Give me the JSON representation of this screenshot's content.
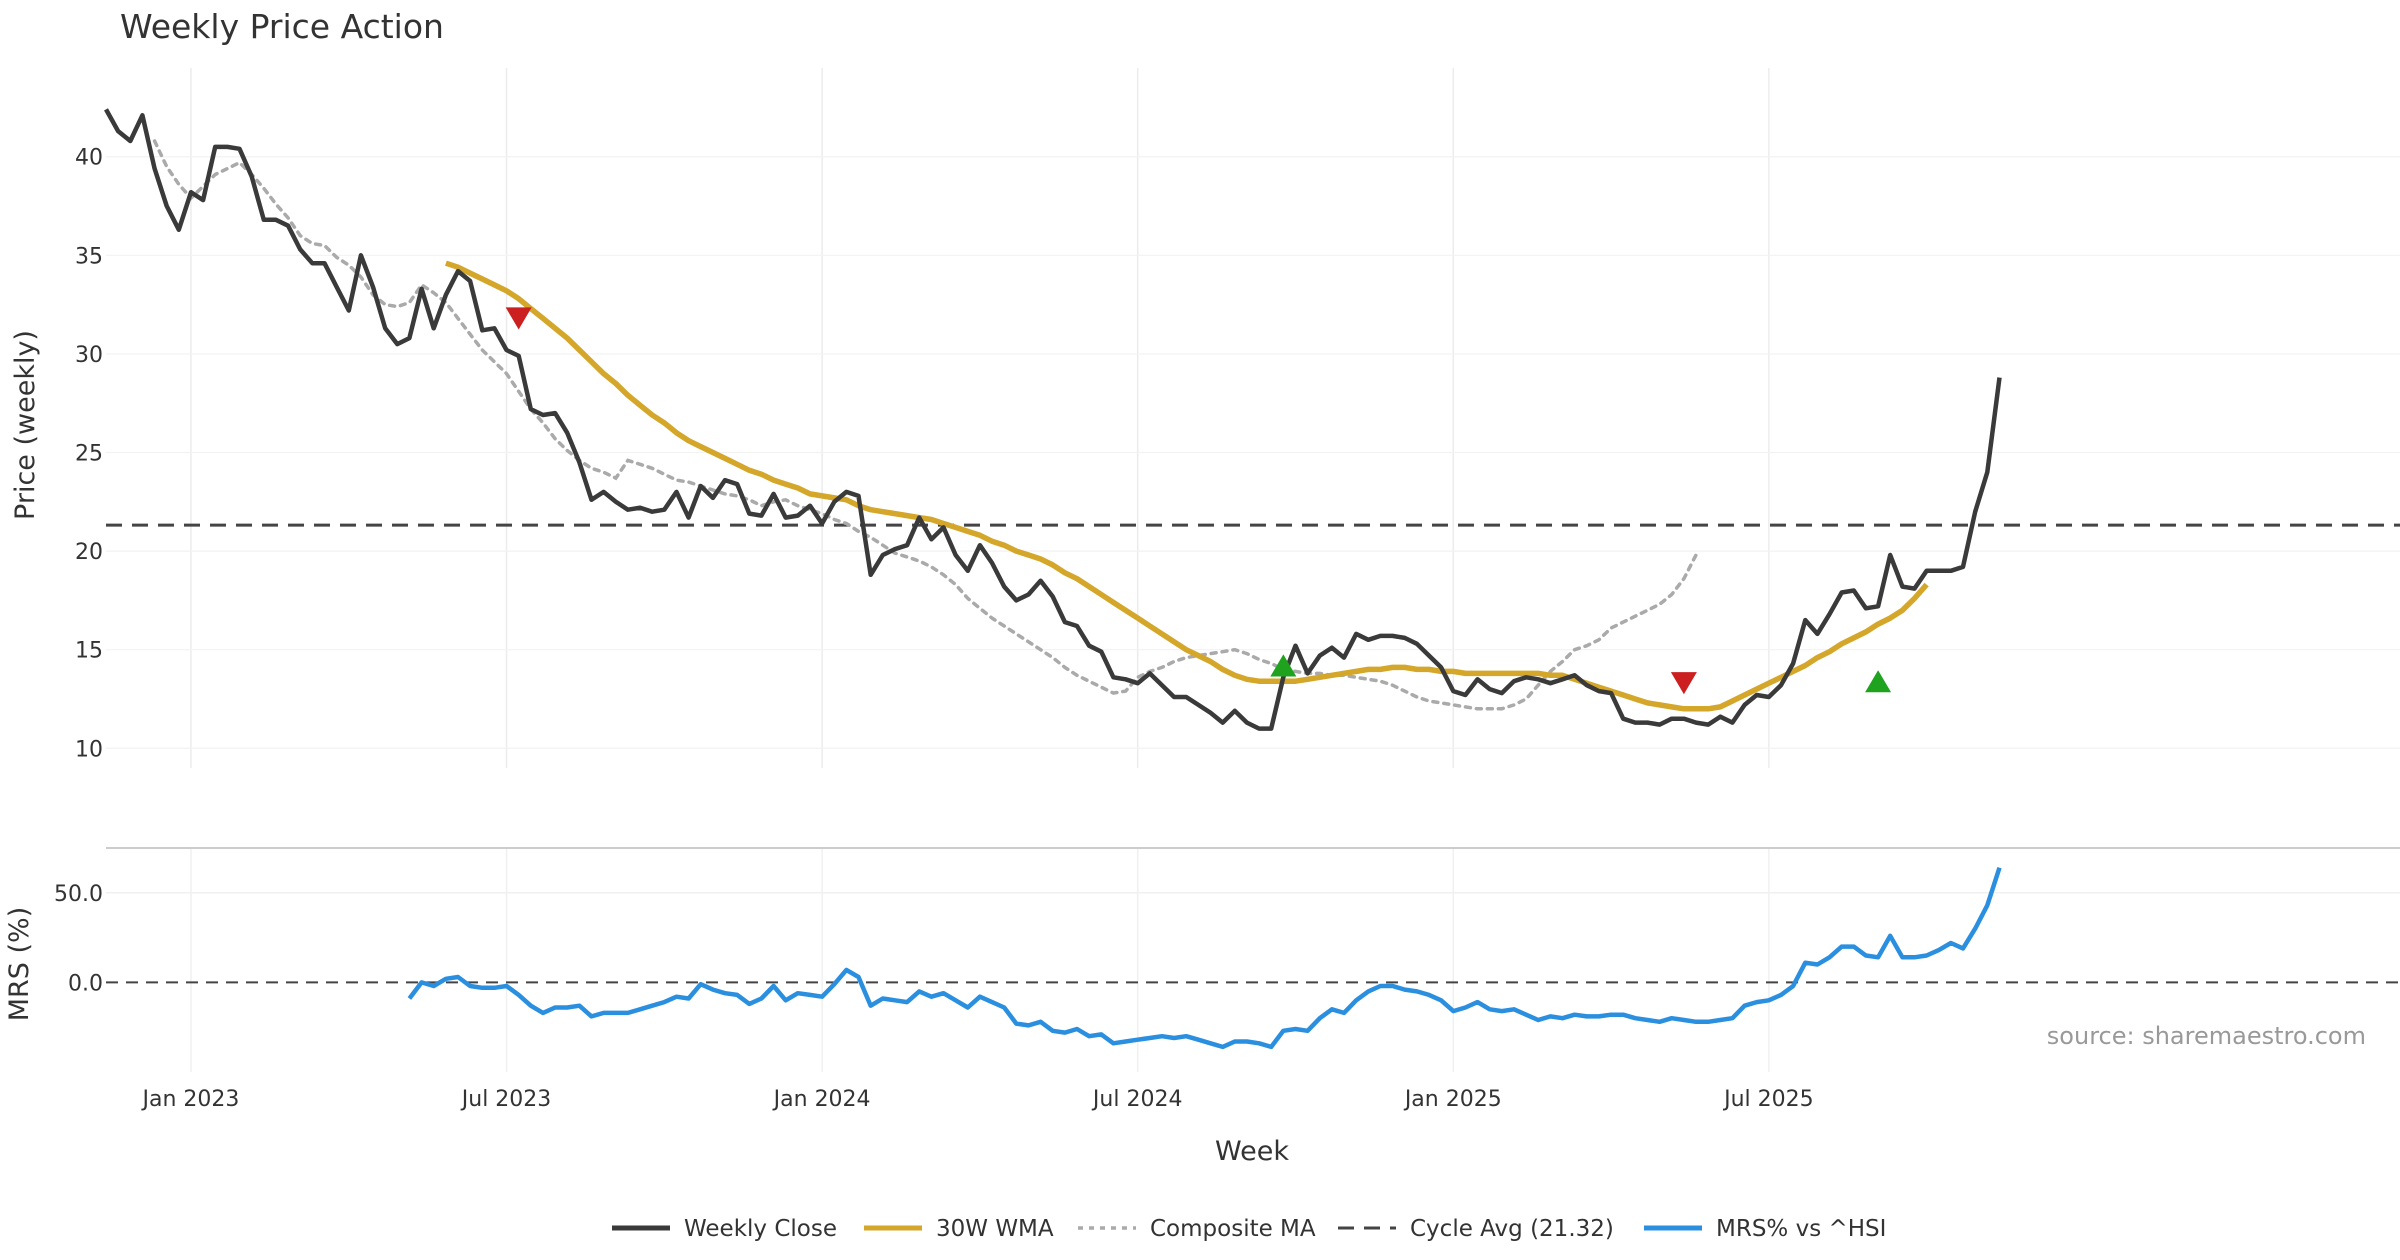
{
  "chart_data": {
    "type": "line",
    "title": "Weekly Price Action",
    "source": "source: sharemaestro.com",
    "xlabel": "Week",
    "xticks": [
      {
        "label": "Jan 2023",
        "week": 5
      },
      {
        "label": "Jul 2023",
        "week": 31
      },
      {
        "label": "Jan 2024",
        "week": 57
      },
      {
        "label": "Jul 2024",
        "week": 83
      },
      {
        "label": "Jan 2025",
        "week": 109
      },
      {
        "label": "Jul 2025",
        "week": 135
      }
    ],
    "x_range": [
      -2,
      187
    ],
    "price_panel": {
      "ylabel": "Price (weekly)",
      "ylim": [
        9,
        44.5
      ],
      "yticks": [
        10,
        15,
        20,
        25,
        30,
        35,
        40
      ],
      "cycle_avg": 21.32,
      "weekly_close": {
        "name": "Weekly Close",
        "color": "#3a3a3a",
        "start_week": -2,
        "values": [
          42.4,
          41.3,
          40.8,
          42.1,
          39.4,
          37.5,
          36.3,
          38.2,
          37.8,
          40.5,
          40.5,
          40.4,
          39.0,
          36.8,
          36.8,
          36.5,
          35.3,
          34.6,
          34.6,
          33.4,
          32.2,
          35.0,
          33.4,
          31.3,
          30.5,
          30.8,
          33.3,
          31.3,
          33.0,
          34.2,
          33.7,
          31.2,
          31.3,
          30.2,
          29.9,
          27.2,
          26.9,
          27.0,
          26.0,
          24.5,
          22.6,
          23.0,
          22.5,
          22.1,
          22.2,
          22.0,
          22.1,
          23.0,
          21.7,
          23.3,
          22.7,
          23.6,
          23.4,
          21.9,
          21.8,
          22.9,
          21.7,
          21.8,
          22.3,
          21.4,
          22.5,
          23.0,
          22.8,
          18.8,
          19.8,
          20.1,
          20.3,
          21.7,
          20.6,
          21.2,
          19.8,
          19.0,
          20.3,
          19.4,
          18.2,
          17.5,
          17.8,
          18.5,
          17.7,
          16.4,
          16.2,
          15.2,
          14.9,
          13.6,
          13.5,
          13.3,
          13.8,
          13.2,
          12.6,
          12.6,
          12.2,
          11.8,
          11.3,
          11.9,
          11.3,
          11.0,
          11.0,
          13.6,
          15.2,
          13.8,
          14.7,
          15.1,
          14.6,
          15.8,
          15.5,
          15.7,
          15.7,
          15.6,
          15.3,
          14.7,
          14.1,
          12.9,
          12.7,
          13.5,
          13.0,
          12.8,
          13.4,
          13.6,
          13.5,
          13.3,
          13.5,
          13.7,
          13.2,
          12.9,
          12.8,
          11.5,
          11.3,
          11.3,
          11.2,
          11.5,
          11.5,
          11.3,
          11.2,
          11.6,
          11.3,
          12.2,
          12.7,
          12.6,
          13.2,
          14.3,
          16.5,
          15.8,
          16.8,
          17.9,
          18.0,
          17.1,
          17.2,
          19.8,
          18.2,
          18.1,
          19.0,
          19.0,
          19.0,
          19.2,
          22.0,
          24.0,
          28.8
        ]
      },
      "wma_30w": {
        "name": "30W WMA",
        "color": "#d4a62a",
        "start_week": 26,
        "values": [
          34.6,
          34.4,
          34.1,
          33.8,
          33.5,
          33.2,
          32.8,
          32.3,
          31.8,
          31.3,
          30.8,
          30.2,
          29.6,
          29.0,
          28.5,
          27.9,
          27.4,
          26.9,
          26.5,
          26.0,
          25.6,
          25.3,
          25.0,
          24.7,
          24.4,
          24.1,
          23.9,
          23.6,
          23.4,
          23.2,
          22.9,
          22.8,
          22.7,
          22.6,
          22.3,
          22.1,
          22.0,
          21.9,
          21.8,
          21.7,
          21.6,
          21.4,
          21.2,
          21.0,
          20.8,
          20.5,
          20.3,
          20.0,
          19.8,
          19.6,
          19.3,
          18.9,
          18.6,
          18.2,
          17.8,
          17.4,
          17.0,
          16.6,
          16.2,
          15.8,
          15.4,
          15.0,
          14.7,
          14.4,
          14.0,
          13.7,
          13.5,
          13.4,
          13.4,
          13.4,
          13.4,
          13.5,
          13.6,
          13.7,
          13.8,
          13.9,
          14.0,
          14.0,
          14.1,
          14.1,
          14.0,
          14.0,
          13.9,
          13.9,
          13.8,
          13.8,
          13.8,
          13.8,
          13.8,
          13.8,
          13.8,
          13.7,
          13.7,
          13.5,
          13.3,
          13.1,
          12.9,
          12.7,
          12.5,
          12.3,
          12.2,
          12.1,
          12.0,
          12.0,
          12.0,
          12.1,
          12.4,
          12.7,
          13.0,
          13.3,
          13.6,
          13.9,
          14.2,
          14.6,
          14.9,
          15.3,
          15.6,
          15.9,
          16.3,
          16.6,
          17.0,
          17.6,
          18.3
        ]
      },
      "composite_ma": {
        "name": "Composite MA",
        "color": "#aaaaaa",
        "start_week": 2,
        "values": [
          40.8,
          39.5,
          38.6,
          37.9,
          38.5,
          39.1,
          39.4,
          39.7,
          39.1,
          38.4,
          37.6,
          36.9,
          36.0,
          35.6,
          35.5,
          34.9,
          34.5,
          33.9,
          33.0,
          32.5,
          32.4,
          32.6,
          33.5,
          33.1,
          32.6,
          31.8,
          31.0,
          30.2,
          29.6,
          29.0,
          28.1,
          27.2,
          26.5,
          25.7,
          25.1,
          24.6,
          24.2,
          24.0,
          23.7,
          24.6,
          24.4,
          24.2,
          23.9,
          23.6,
          23.5,
          23.3,
          23.1,
          22.9,
          22.8,
          22.6,
          22.3,
          22.5,
          22.6,
          22.3,
          22.1,
          21.9,
          21.6,
          21.4,
          21.0,
          20.7,
          20.3,
          19.9,
          19.7,
          19.5,
          19.2,
          18.8,
          18.3,
          17.6,
          17.1,
          16.6,
          16.2,
          15.8,
          15.4,
          15.0,
          14.6,
          14.1,
          13.7,
          13.4,
          13.1,
          12.8,
          12.9,
          13.6,
          13.9,
          14.1,
          14.4,
          14.6,
          14.7,
          14.8,
          14.9,
          15.0,
          14.8,
          14.5,
          14.3,
          14.0,
          13.9,
          13.8,
          13.8,
          13.7,
          13.7,
          13.6,
          13.5,
          13.4,
          13.2,
          12.9,
          12.6,
          12.4,
          12.3,
          12.2,
          12.1,
          12.0,
          12.0,
          12.0,
          12.2,
          12.5,
          13.2,
          13.9,
          14.4,
          15.0,
          15.2,
          15.5,
          16.1,
          16.4,
          16.7,
          17.0,
          17.3,
          17.8,
          18.6,
          19.8
        ]
      },
      "sell_signals": [
        {
          "week": 32,
          "price": 31.8
        },
        {
          "week": 128,
          "price": 13.3
        }
      ],
      "buy_signals": [
        {
          "week": 95,
          "price": 14.2
        },
        {
          "week": 144,
          "price": 13.4
        }
      ]
    },
    "mrs_panel": {
      "ylabel": "MRS (%)",
      "ylim": [
        -50,
        75
      ],
      "yticks": [
        {
          "value": 0,
          "label": "0.0"
        },
        {
          "value": 50,
          "label": "50.0"
        }
      ],
      "mrs": {
        "name": "MRS% vs ^HSI",
        "color": "#2b8fe0",
        "start_week": 23,
        "values": [
          -9,
          0,
          -2,
          2,
          3,
          -2,
          -3,
          -3,
          -2,
          -7,
          -13,
          -17,
          -14,
          -14,
          -13,
          -19,
          -17,
          -17,
          -17,
          -15,
          -13,
          -11,
          -8,
          -9,
          -1,
          -4,
          -6,
          -7,
          -12,
          -9,
          -2,
          -10,
          -6,
          -7,
          -8,
          -1,
          7,
          3,
          -13,
          -9,
          -10,
          -11,
          -5,
          -8,
          -6,
          -10,
          -14,
          -8,
          -11,
          -14,
          -23,
          -24,
          -22,
          -27,
          -28,
          -26,
          -30,
          -29,
          -34,
          -33,
          -32,
          -31,
          -30,
          -31,
          -30,
          -32,
          -34,
          -36,
          -33,
          -33,
          -34,
          -36,
          -27,
          -26,
          -27,
          -20,
          -15,
          -17,
          -10,
          -5,
          -2,
          -2,
          -4,
          -5,
          -7,
          -10,
          -16,
          -14,
          -11,
          -15,
          -16,
          -15,
          -18,
          -21,
          -19,
          -20,
          -18,
          -19,
          -19,
          -18,
          -18,
          -20,
          -21,
          -22,
          -20,
          -21,
          -22,
          -22,
          -21,
          -20,
          -13,
          -11,
          -10,
          -7,
          -2,
          11,
          10,
          14,
          20,
          20,
          15,
          14,
          26,
          14,
          14,
          15,
          18,
          22,
          19,
          30,
          43,
          64
        ]
      }
    },
    "legend": [
      {
        "label": "Weekly Close",
        "color": "#3a3a3a",
        "style": "solid"
      },
      {
        "label": "30W WMA",
        "color": "#d4a62a",
        "style": "solid"
      },
      {
        "label": "Composite MA",
        "color": "#aaaaaa",
        "style": "dotted"
      },
      {
        "label": "Cycle Avg (21.32)",
        "color": "#444444",
        "style": "dashed"
      },
      {
        "label": "MRS% vs ^HSI",
        "color": "#2b8fe0",
        "style": "solid"
      }
    ],
    "legend_position": "bottom-center",
    "grid": true
  }
}
